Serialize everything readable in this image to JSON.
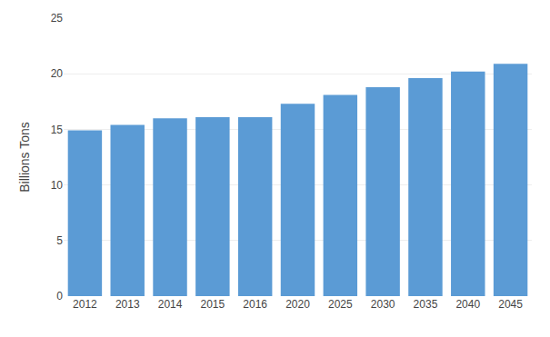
{
  "chart_data": {
    "type": "bar",
    "categories": [
      "2012",
      "2013",
      "2014",
      "2015",
      "2016",
      "2020",
      "2025",
      "2030",
      "2035",
      "2040",
      "2045"
    ],
    "values": [
      14.9,
      15.4,
      16.0,
      16.1,
      16.1,
      17.3,
      18.1,
      18.8,
      19.6,
      20.2,
      20.9
    ],
    "color": "#5b9bd5",
    "ylabel": "Billions Tons",
    "ylim": [
      0,
      25
    ],
    "yticks": [
      0,
      5,
      10,
      15,
      20,
      25
    ],
    "grid": true
  }
}
